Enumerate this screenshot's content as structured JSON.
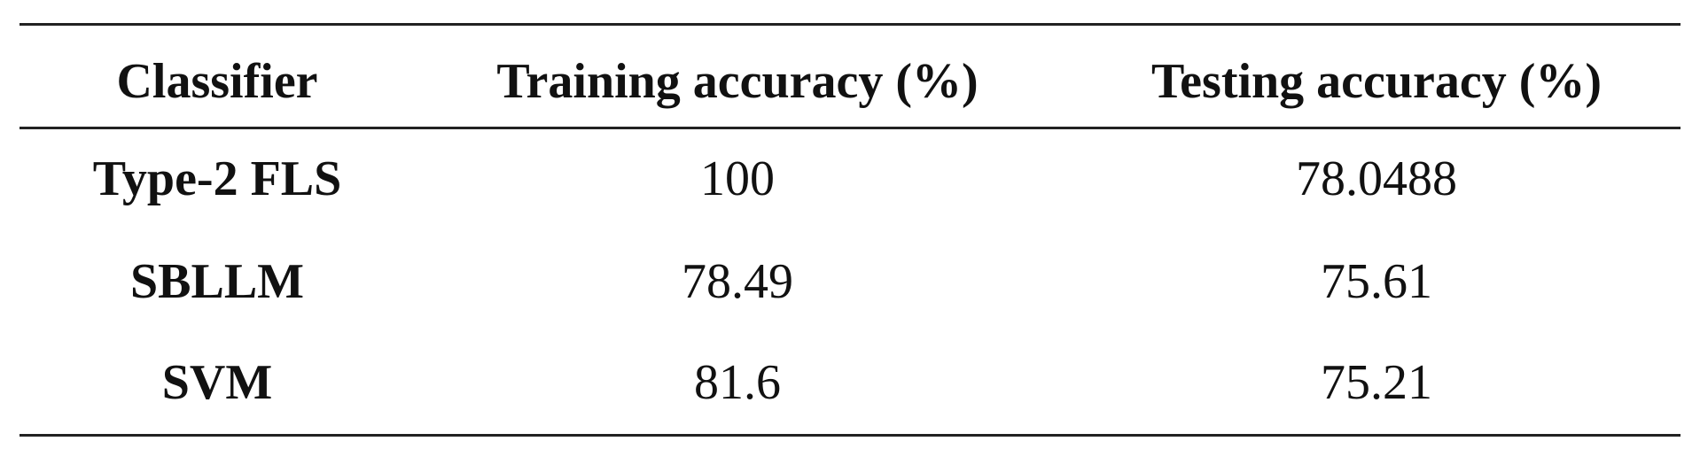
{
  "table": {
    "header": [
      "Classifier",
      "Training accuracy (%)",
      "Testing accuracy (%)"
    ],
    "rows": [
      [
        "Type-2 FLS",
        100,
        78.0488
      ],
      [
        "SBLLM",
        78.49,
        75.61
      ],
      [
        "SVM",
        81.6,
        75.21
      ]
    ]
  }
}
